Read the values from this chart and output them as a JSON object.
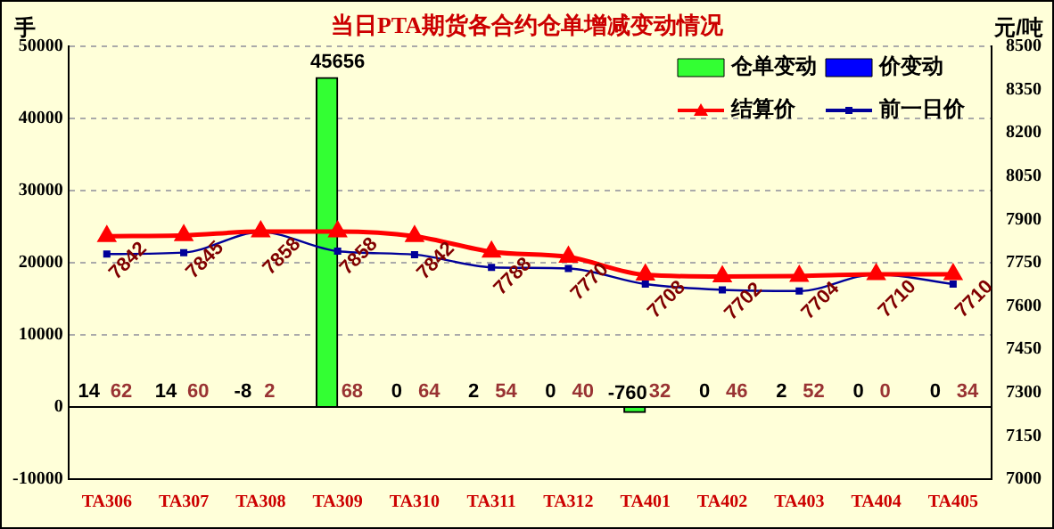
{
  "chart_data": {
    "type": "bar",
    "title": "当日PTA期货各合约仓单增减变动情况",
    "ylabel": "手",
    "y2label": "元/吨",
    "categories": [
      "TA306",
      "TA307",
      "TA308",
      "TA309",
      "TA310",
      "TA311",
      "TA312",
      "TA401",
      "TA402",
      "TA403",
      "TA404",
      "TA405"
    ],
    "series": [
      {
        "name": "仓单变动",
        "color": "#33ff33",
        "values": [
          14,
          14,
          -8,
          45656,
          0,
          2,
          0,
          -760,
          0,
          2,
          0,
          0
        ],
        "value_labels": [
          "14",
          "14",
          "-8",
          "45656",
          "0",
          "2",
          "0",
          "-760",
          "0",
          "2",
          "0",
          "0"
        ]
      },
      {
        "name": "价变动",
        "axis": "y2",
        "color": "#0000ff",
        "values": [
          null,
          null,
          null,
          null,
          null,
          null,
          null,
          null,
          null,
          null,
          null,
          null
        ],
        "value_labels": [
          "62",
          "60",
          "2",
          "68",
          "64",
          "54",
          "40",
          "32",
          "46",
          "52",
          "0",
          "34"
        ]
      },
      {
        "name": "结算价",
        "type": "line",
        "axis": "y2",
        "color": "#ff0000",
        "marker": "triangle",
        "values": [
          7842,
          7845,
          7858,
          7858,
          7842,
          7788,
          7770,
          7708,
          7702,
          7704,
          7710,
          7710
        ],
        "value_labels": [
          "7842",
          "7845",
          "7858",
          "7858",
          "7842",
          "7788",
          "7770",
          "7708",
          "7702",
          "7704",
          "7710",
          "7710"
        ]
      },
      {
        "name": "前一日价",
        "type": "line",
        "axis": "y2",
        "color": "#000099",
        "marker": "square",
        "values": [
          7780,
          7785,
          7856,
          7790,
          7778,
          7734,
          7730,
          7676,
          7656,
          7652,
          7710,
          7676
        ]
      }
    ],
    "ylim": [
      -10000,
      50000
    ],
    "yticks": [
      -10000,
      0,
      10000,
      20000,
      30000,
      40000,
      50000
    ],
    "y2lim": [
      7000,
      8500
    ],
    "y2ticks": [
      7000,
      7150,
      7300,
      7450,
      7600,
      7750,
      7900,
      8050,
      8200,
      8350,
      8500
    ],
    "grid": "y",
    "legend": "top right"
  }
}
